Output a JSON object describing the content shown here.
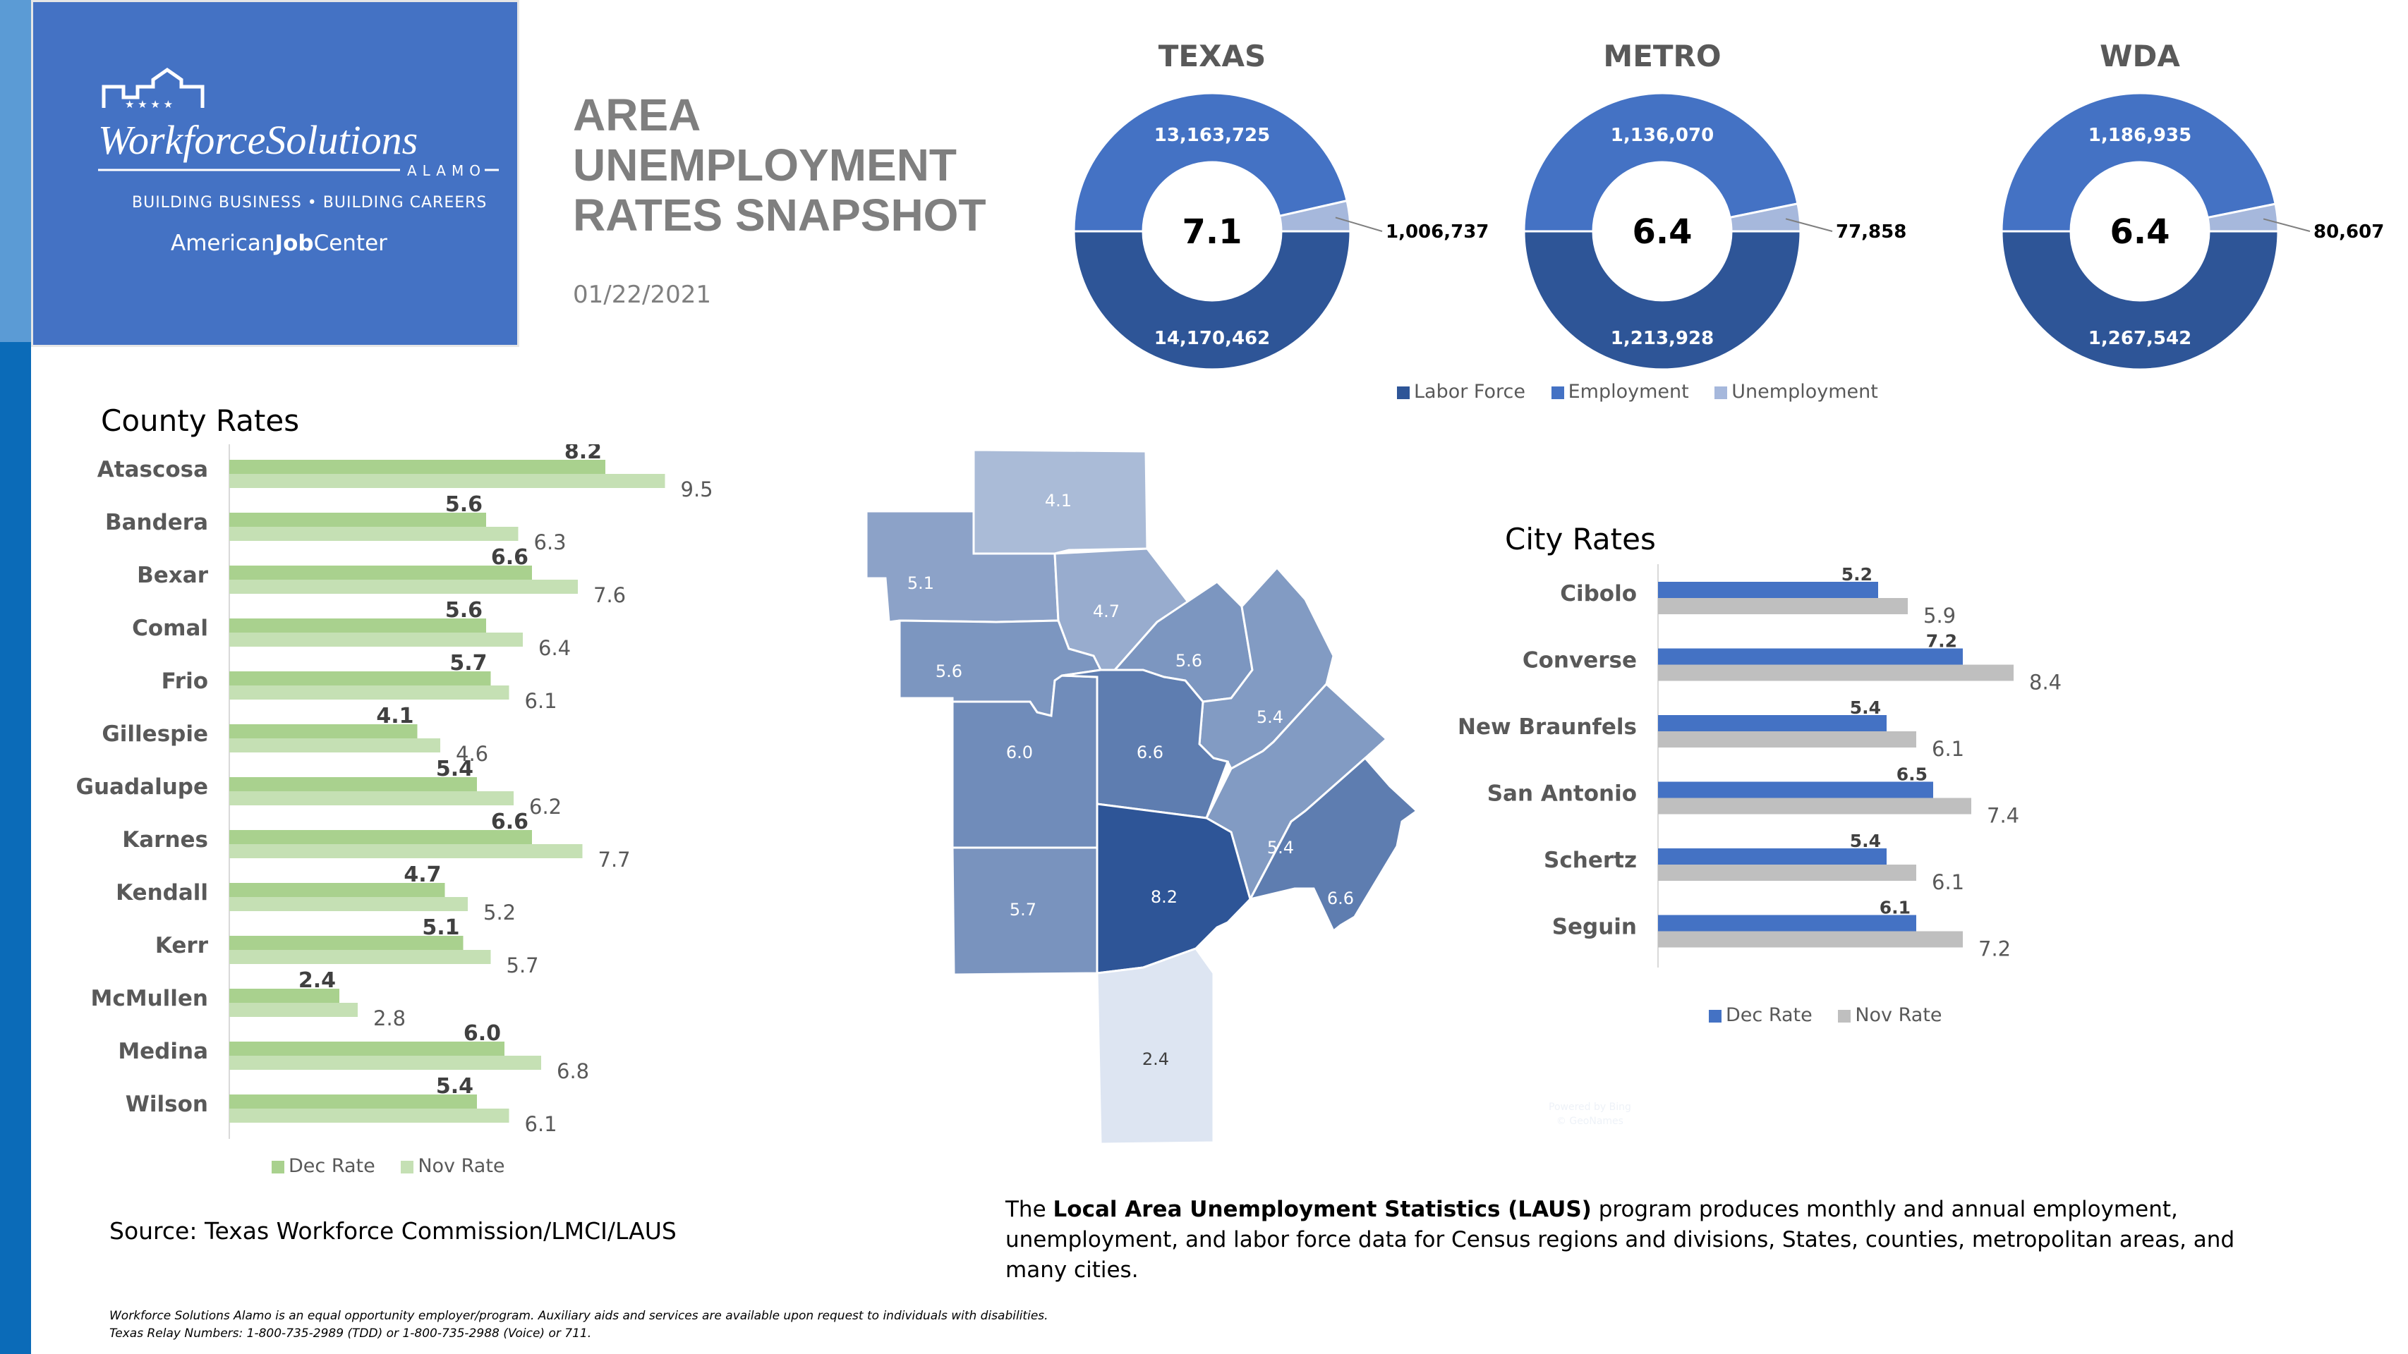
{
  "header": {
    "logo_main": "WorkforceSolutions",
    "logo_sub": "ALAMO",
    "tagline": "BUILDING BUSINESS • BUILDING CAREERS",
    "ajc_pre": "American",
    "ajc_bold": "Job",
    "ajc_post": "Center",
    "title_line1": "AREA",
    "title_line2": "UNEMPLOYMENT",
    "title_line3": "RATES SNAPSHOT",
    "date": "01/22/2021"
  },
  "colors": {
    "labor_force": "#2e5597",
    "employment": "#4472c4",
    "unemployment": "#a6b8dc",
    "county_dec": "#a9d18e",
    "county_nov": "#c5e0b4",
    "city_dec": "#4472c4",
    "city_nov": "#bfbfbf",
    "brand_blue": "#4472c4"
  },
  "donuts": {
    "legend": [
      "Labor Force",
      "Employment",
      "Unemployment"
    ]
  },
  "county": {
    "title": "County Rates",
    "legend": [
      "Dec Rate",
      "Nov Rate"
    ]
  },
  "city": {
    "title": "City Rates",
    "legend": [
      "Dec Rate",
      "Nov Rate"
    ]
  },
  "map": {
    "attribution_line1": "Powered by Bing",
    "attribution_line2": "© GeoNames"
  },
  "laus": {
    "pre": "The ",
    "bold": "Local Area Unemployment Statistics (LAUS)",
    "post": " program produces monthly and annual employment, unemployment, and labor force data for Census regions and divisions, States, counties, metropolitan areas, and many cities."
  },
  "source": "Source: Texas Workforce Commission/LMCI/LAUS",
  "footer": {
    "line1": "Workforce Solutions Alamo is an equal opportunity employer/program. Auxiliary aids and services are available upon request to individuals with disabilities.",
    "line2": "Texas Relay Numbers: 1-800-735-2989 (TDD) or 1-800-735-2988 (Voice) or 711."
  },
  "chart_data": [
    {
      "type": "pie",
      "title": "TEXAS",
      "center_label": "7.1",
      "categories": [
        "Labor Force",
        "Employment",
        "Unemployment"
      ],
      "values": [
        14170462,
        13163725,
        1006737
      ],
      "value_labels": [
        "14,170,462",
        "13,163,725",
        "1,006,737"
      ]
    },
    {
      "type": "pie",
      "title": "METRO",
      "center_label": "6.4",
      "categories": [
        "Labor Force",
        "Employment",
        "Unemployment"
      ],
      "values": [
        1213928,
        1136070,
        77858
      ],
      "value_labels": [
        "1,213,928",
        "1,136,070",
        "77,858"
      ]
    },
    {
      "type": "pie",
      "title": "WDA",
      "center_label": "6.4",
      "categories": [
        "Labor Force",
        "Employment",
        "Unemployment"
      ],
      "values": [
        1267542,
        1186935,
        80607
      ],
      "value_labels": [
        "1,267,542",
        "1,186,935",
        "80,607"
      ]
    },
    {
      "type": "bar",
      "orientation": "horizontal",
      "title": "County Rates",
      "categories": [
        "Atascosa",
        "Bandera",
        "Bexar",
        "Comal",
        "Frio",
        "Gillespie",
        "Guadalupe",
        "Karnes",
        "Kendall",
        "Kerr",
        "McMullen",
        "Medina",
        "Wilson"
      ],
      "series": [
        {
          "name": "Dec Rate",
          "values": [
            8.2,
            5.6,
            6.6,
            5.6,
            5.7,
            4.1,
            5.4,
            6.6,
            4.7,
            5.1,
            2.4,
            6.0,
            5.4
          ],
          "labels": [
            "8.2",
            "5.6",
            "6.6",
            "5.6",
            "5.7",
            "4.1",
            "5.4",
            "6.6",
            "4.7",
            "5.1",
            "2.4",
            "6.0",
            "5.4"
          ]
        },
        {
          "name": "Nov Rate",
          "values": [
            9.5,
            6.3,
            7.6,
            6.4,
            6.1,
            4.6,
            6.2,
            7.7,
            5.2,
            5.7,
            2.8,
            6.8,
            6.1
          ],
          "labels": [
            "9.5",
            "6.3",
            "7.6",
            "6.4",
            "6.1",
            "4.6",
            "6.2",
            "7.7",
            "5.2",
            "5.7",
            "2.8",
            "6.8",
            "6.1"
          ]
        }
      ],
      "legend": "bottom"
    },
    {
      "type": "bar",
      "orientation": "horizontal",
      "title": "City Rates",
      "categories": [
        "Cibolo",
        "Converse",
        "New Braunfels",
        "San Antonio",
        "Schertz",
        "Seguin"
      ],
      "series": [
        {
          "name": "Dec Rate",
          "values": [
            5.2,
            7.2,
            5.4,
            6.5,
            5.4,
            6.1
          ],
          "labels": [
            "5.2",
            "7.2",
            "5.4",
            "6.5",
            "5.4",
            "6.1"
          ]
        },
        {
          "name": "Nov Rate",
          "values": [
            5.9,
            8.4,
            6.1,
            7.4,
            6.1,
            7.2
          ],
          "labels": [
            "5.9",
            "8.4",
            "6.1",
            "7.4",
            "6.1",
            "7.2"
          ]
        }
      ],
      "legend": "bottom"
    },
    {
      "type": "heatmap",
      "subtype": "choropleth",
      "regions": [
        "Gillespie",
        "Kerr",
        "Kendall",
        "Comal",
        "Bandera",
        "Guadalupe",
        "Medina",
        "Bexar",
        "Wilson",
        "Frio",
        "Atascosa",
        "Karnes",
        "McMullen"
      ],
      "values": [
        4.1,
        5.1,
        4.7,
        5.6,
        5.6,
        5.4,
        6.0,
        6.6,
        5.4,
        5.7,
        8.2,
        6.6,
        2.4
      ],
      "labels": [
        "4.1",
        "5.1",
        "4.7",
        "5.6",
        "5.6",
        "5.4",
        "6.0",
        "6.6",
        "5.4",
        "5.7",
        "8.2",
        "6.6",
        "2.4"
      ]
    }
  ]
}
